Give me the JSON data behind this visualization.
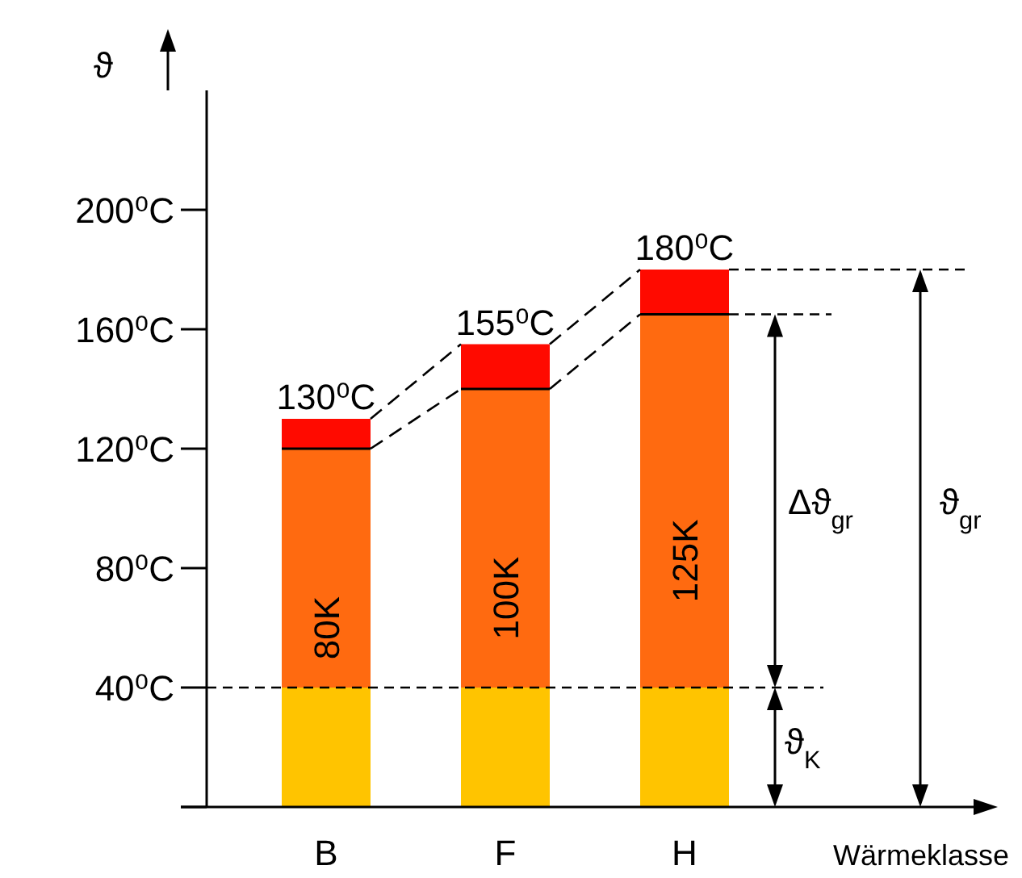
{
  "chart_data": {
    "type": "bar",
    "stacked": true,
    "ylabel": "ϑ",
    "xlabel": "Wärmeklasse",
    "categories": [
      "B",
      "F",
      "H"
    ],
    "series": [
      {
        "color": "#ffc400",
        "values": [
          40,
          40,
          40
        ]
      },
      {
        "color": "#ff6a10",
        "values": [
          80,
          100,
          125
        ],
        "value_labels": [
          "80K",
          "100K",
          "125K"
        ]
      },
      {
        "color": "#ff0a00",
        "values": [
          10,
          15,
          15
        ]
      }
    ],
    "totals": [
      "130⁰C",
      "155⁰C",
      "180⁰C"
    ],
    "ylim": [
      0,
      240
    ],
    "yticks": [
      {
        "value": 0,
        "label": null
      },
      {
        "value": 40,
        "label": "40⁰C"
      },
      {
        "value": 80,
        "label": "80⁰C"
      },
      {
        "value": 120,
        "label": "120⁰C"
      },
      {
        "value": 160,
        "label": "160⁰C"
      },
      {
        "value": 200,
        "label": "200⁰C"
      }
    ],
    "ref_lines": [
      {
        "axis": "y",
        "value": 40,
        "line_style": "dashed",
        "color": "#000000"
      }
    ],
    "annotations": [
      "Δϑ$_{gr}$",
      "ϑ$_{gr}$",
      "ϑ$_{K}$"
    ],
    "grid": false
  }
}
